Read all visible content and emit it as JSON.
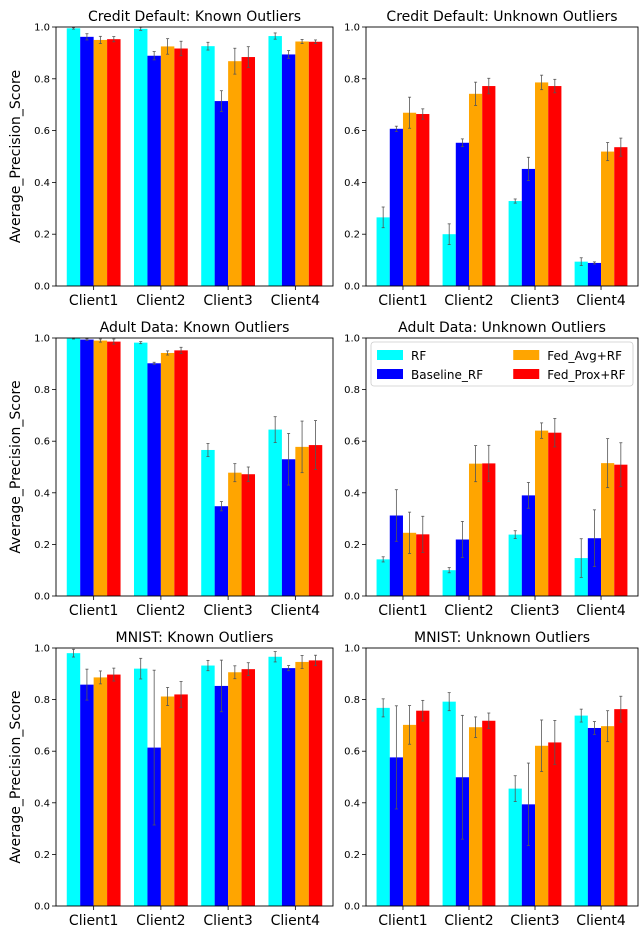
{
  "colors": {
    "RF": "#00FFFF",
    "Baseline_RF": "#0000FF",
    "Fed_Avg+RF": "#FFA500",
    "Fed_Prox+RF": "#FF0000",
    "errorbar": "#555555"
  },
  "legend": {
    "entries": [
      "RF",
      "Baseline_RF",
      "Fed_Avg+RF",
      "Fed_Prox+RF"
    ],
    "placement": "top-right",
    "panel": 3
  },
  "chart_data": [
    {
      "type": "bar",
      "title": "Credit Default: Known Outliers",
      "ylabel": "Average_Precision_Score",
      "categories": [
        "Client1",
        "Client2",
        "Client3",
        "Client4"
      ],
      "ylim": [
        0,
        1
      ],
      "yticks": [
        "0.0",
        "0.2",
        "0.4",
        "0.6",
        "0.8",
        "1.0"
      ],
      "series": [
        {
          "name": "RF",
          "values": [
            0.995,
            0.993,
            0.926,
            0.965
          ],
          "err": [
            0.003,
            0.006,
            0.015,
            0.012
          ]
        },
        {
          "name": "Baseline_RF",
          "values": [
            0.962,
            0.889,
            0.714,
            0.894
          ],
          "err": [
            0.012,
            0.016,
            0.04,
            0.015
          ]
        },
        {
          "name": "Fed_Avg+RF",
          "values": [
            0.95,
            0.925,
            0.868,
            0.944
          ],
          "err": [
            0.014,
            0.03,
            0.05,
            0.008
          ]
        },
        {
          "name": "Fed_Prox+RF",
          "values": [
            0.953,
            0.917,
            0.884,
            0.943
          ],
          "err": [
            0.01,
            0.028,
            0.04,
            0.007
          ]
        }
      ]
    },
    {
      "type": "bar",
      "title": "Credit Default: Unknown Outliers",
      "ylabel": "",
      "categories": [
        "Client1",
        "Client2",
        "Client3",
        "Client4"
      ],
      "ylim": [
        0,
        1
      ],
      "yticks": [
        "0.0",
        "0.2",
        "0.4",
        "0.6",
        "0.8",
        "1.0"
      ],
      "series": [
        {
          "name": "RF",
          "values": [
            0.265,
            0.2,
            0.328,
            0.094
          ],
          "err": [
            0.04,
            0.04,
            0.008,
            0.015
          ]
        },
        {
          "name": "Baseline_RF",
          "values": [
            0.607,
            0.553,
            0.452,
            0.089
          ],
          "err": [
            0.01,
            0.015,
            0.045,
            0.004
          ]
        },
        {
          "name": "Fed_Avg+RF",
          "values": [
            0.669,
            0.742,
            0.786,
            0.519
          ],
          "err": [
            0.06,
            0.045,
            0.028,
            0.035
          ]
        },
        {
          "name": "Fed_Prox+RF",
          "values": [
            0.664,
            0.772,
            0.772,
            0.536
          ],
          "err": [
            0.02,
            0.03,
            0.026,
            0.035
          ]
        }
      ]
    },
    {
      "type": "bar",
      "title": "Adult Data: Known Outliers",
      "ylabel": "Average_Precision_Score",
      "categories": [
        "Client1",
        "Client2",
        "Client3",
        "Client4"
      ],
      "ylim": [
        0,
        1
      ],
      "yticks": [
        "0.0",
        "0.2",
        "0.4",
        "0.6",
        "0.8",
        "1.0"
      ],
      "series": [
        {
          "name": "RF",
          "values": [
            0.998,
            0.982,
            0.566,
            0.645
          ],
          "err": [
            0.002,
            0.004,
            0.025,
            0.05
          ]
        },
        {
          "name": "Baseline_RF",
          "values": [
            0.994,
            0.902,
            0.348,
            0.53
          ],
          "err": [
            0.003,
            0.004,
            0.018,
            0.1
          ]
        },
        {
          "name": "Fed_Avg+RF",
          "values": [
            0.99,
            0.942,
            0.478,
            0.578
          ],
          "err": [
            0.006,
            0.008,
            0.035,
            0.1
          ]
        },
        {
          "name": "Fed_Prox+RF",
          "values": [
            0.986,
            0.952,
            0.472,
            0.585
          ],
          "err": [
            0.01,
            0.012,
            0.028,
            0.095
          ]
        }
      ]
    },
    {
      "type": "bar",
      "title": "Adult Data: Unknown Outliers",
      "ylabel": "",
      "categories": [
        "Client1",
        "Client2",
        "Client3",
        "Client4"
      ],
      "ylim": [
        0,
        1
      ],
      "yticks": [
        "0.0",
        "0.2",
        "0.4",
        "0.6",
        "0.8",
        "1.0"
      ],
      "series": [
        {
          "name": "RF",
          "values": [
            0.142,
            0.1,
            0.238,
            0.147
          ],
          "err": [
            0.01,
            0.01,
            0.015,
            0.075
          ]
        },
        {
          "name": "Baseline_RF",
          "values": [
            0.312,
            0.219,
            0.39,
            0.224
          ],
          "err": [
            0.1,
            0.07,
            0.05,
            0.11
          ]
        },
        {
          "name": "Fed_Avg+RF",
          "values": [
            0.245,
            0.513,
            0.641,
            0.515
          ],
          "err": [
            0.08,
            0.07,
            0.03,
            0.095
          ]
        },
        {
          "name": "Fed_Prox+RF",
          "values": [
            0.239,
            0.514,
            0.633,
            0.509
          ],
          "err": [
            0.07,
            0.07,
            0.055,
            0.085
          ]
        }
      ]
    },
    {
      "type": "bar",
      "title": "MNIST: Known Outliers",
      "ylabel": "Average_Precision_Score",
      "categories": [
        "Client1",
        "Client2",
        "Client3",
        "Client4"
      ],
      "ylim": [
        0,
        1
      ],
      "yticks": [
        "0.0",
        "0.2",
        "0.4",
        "0.6",
        "0.8",
        "1.0"
      ],
      "series": [
        {
          "name": "RF",
          "values": [
            0.98,
            0.92,
            0.932,
            0.966
          ],
          "err": [
            0.015,
            0.04,
            0.02,
            0.02
          ]
        },
        {
          "name": "Baseline_RF",
          "values": [
            0.858,
            0.614,
            0.853,
            0.922
          ],
          "err": [
            0.06,
            0.3,
            0.1,
            0.01
          ]
        },
        {
          "name": "Fed_Avg+RF",
          "values": [
            0.886,
            0.812,
            0.906,
            0.946
          ],
          "err": [
            0.025,
            0.035,
            0.025,
            0.025
          ]
        },
        {
          "name": "Fed_Prox+RF",
          "values": [
            0.897,
            0.82,
            0.918,
            0.952
          ],
          "err": [
            0.025,
            0.05,
            0.025,
            0.02
          ]
        }
      ]
    },
    {
      "type": "bar",
      "title": "MNIST: Unknown Outliers",
      "ylabel": "",
      "categories": [
        "Client1",
        "Client2",
        "Client3",
        "Client4"
      ],
      "ylim": [
        0,
        1
      ],
      "yticks": [
        "0.0",
        "0.2",
        "0.4",
        "0.6",
        "0.8",
        "1.0"
      ],
      "series": [
        {
          "name": "RF",
          "values": [
            0.768,
            0.792,
            0.455,
            0.738
          ],
          "err": [
            0.035,
            0.035,
            0.05,
            0.025
          ]
        },
        {
          "name": "Baseline_RF",
          "values": [
            0.576,
            0.499,
            0.394,
            0.69
          ],
          "err": [
            0.2,
            0.24,
            0.16,
            0.025
          ]
        },
        {
          "name": "Fed_Avg+RF",
          "values": [
            0.702,
            0.693,
            0.621,
            0.697
          ],
          "err": [
            0.075,
            0.04,
            0.1,
            0.06
          ]
        },
        {
          "name": "Fed_Prox+RF",
          "values": [
            0.757,
            0.718,
            0.634,
            0.763
          ],
          "err": [
            0.04,
            0.03,
            0.085,
            0.05
          ]
        }
      ]
    }
  ]
}
